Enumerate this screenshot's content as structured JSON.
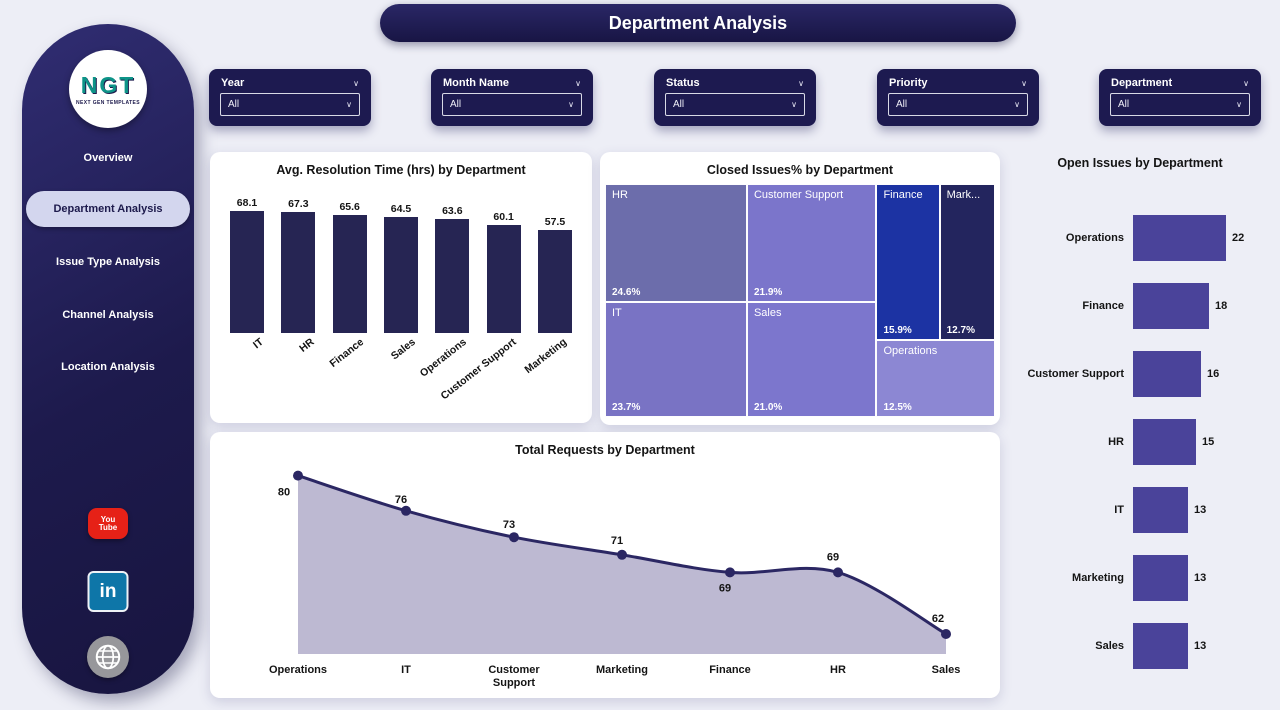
{
  "page": {
    "title": "Department Analysis"
  },
  "sidebar": {
    "logo": {
      "title": "NGT",
      "subtitle": "NEXT GEN TEMPLATES"
    },
    "items": [
      {
        "label": "Overview",
        "active": false
      },
      {
        "label": "Department Analysis",
        "active": true
      },
      {
        "label": "Issue Type Analysis",
        "active": false
      },
      {
        "label": "Channel Analysis",
        "active": false
      },
      {
        "label": "Location Analysis",
        "active": false
      }
    ],
    "youtube_glyph": {
      "line1": "You",
      "line2": "Tube"
    },
    "linkedin_glyph": "in"
  },
  "filters": [
    {
      "label": "Year",
      "value": "All"
    },
    {
      "label": "Month Name",
      "value": "All"
    },
    {
      "label": "Status",
      "value": "All"
    },
    {
      "label": "Priority",
      "value": "All"
    },
    {
      "label": "Department",
      "value": "All"
    }
  ],
  "colors": {
    "navy": "#1d1a50",
    "bar_navy": "#262553",
    "purple_bar": "#4a439a",
    "area_line": "#2b2763",
    "area_fill": "#b9b5d0",
    "active_pill": "#d3d6ee"
  },
  "chart_data": [
    {
      "type": "bar",
      "title": "Avg. Resolution Time (hrs) by Department",
      "categories": [
        "IT",
        "HR",
        "Finance",
        "Sales",
        "Operations",
        "Customer Support",
        "Marketing"
      ],
      "values": [
        68.1,
        67.3,
        65.6,
        64.5,
        63.6,
        60.1,
        57.5
      ],
      "ylim": [
        0,
        70
      ],
      "bar_color": "#262553"
    },
    {
      "type": "treemap",
      "title": "Closed Issues% by Department",
      "tiles": [
        {
          "label": "HR",
          "short_label": "HR",
          "value": 24.6,
          "display": "24.6%",
          "color": "#6c6dab"
        },
        {
          "label": "IT",
          "short_label": "IT",
          "value": 23.7,
          "display": "23.7%",
          "color": "#7973c4"
        },
        {
          "label": "Customer Support",
          "short_label": "Customer Support",
          "value": 21.9,
          "display": "21.9%",
          "color": "#7b75cb"
        },
        {
          "label": "Sales",
          "short_label": "Sales",
          "value": 21.0,
          "display": "21.0%",
          "color": "#7c76cd"
        },
        {
          "label": "Finance",
          "short_label": "Finance",
          "value": 15.9,
          "display": "15.9%",
          "color": "#1c33a3"
        },
        {
          "label": "Marketing",
          "short_label": "Mark...",
          "value": 12.7,
          "display": "12.7%",
          "color": "#23255e"
        },
        {
          "label": "Operations",
          "short_label": "Operations",
          "value": 12.5,
          "display": "12.5%",
          "color": "#8c87d3"
        }
      ]
    },
    {
      "type": "bar-horizontal",
      "title": "Open Issues by Department",
      "categories": [
        "Operations",
        "Finance",
        "Customer Support",
        "HR",
        "IT",
        "Marketing",
        "Sales"
      ],
      "values": [
        22,
        18,
        16,
        15,
        13,
        13,
        13
      ],
      "bar_color": "#4a439a"
    },
    {
      "type": "area",
      "title": "Total Requests by Department",
      "categories": [
        "Operations",
        "IT",
        "Customer Support",
        "Marketing",
        "Finance",
        "HR",
        "Sales"
      ],
      "values": [
        80,
        76,
        73,
        71,
        69,
        69,
        62
      ],
      "line_color": "#2b2763",
      "fill_color": "#b9b5d0"
    }
  ]
}
